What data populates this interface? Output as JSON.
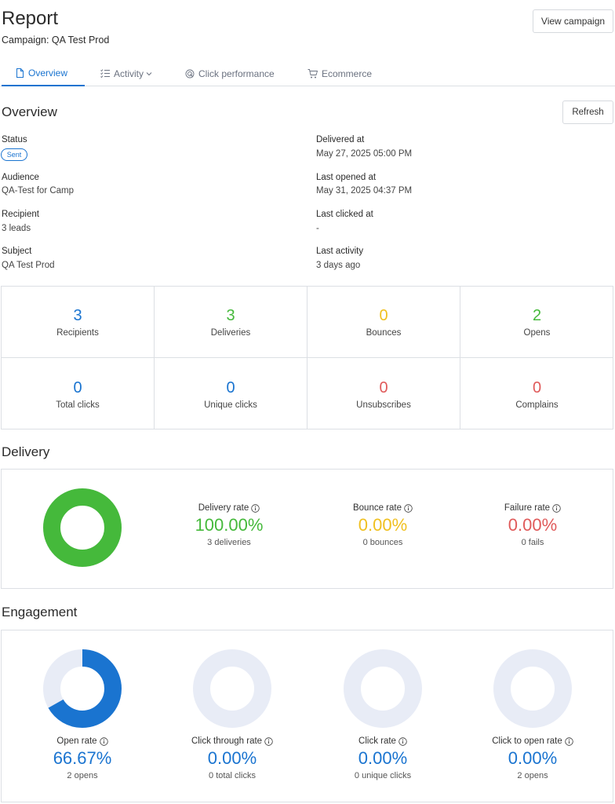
{
  "header": {
    "title": "Report",
    "campaign_line": "Campaign: QA Test Prod",
    "view_campaign_label": "View campaign"
  },
  "tabs": [
    {
      "label": "Overview",
      "icon": "document-icon",
      "active": true
    },
    {
      "label": "Activity",
      "icon": "checklist-icon",
      "active": false
    },
    {
      "label": "Click performance",
      "icon": "click-target-icon",
      "active": false
    },
    {
      "label": "Ecommerce",
      "icon": "cart-icon",
      "active": false
    }
  ],
  "overview": {
    "title": "Overview",
    "refresh_label": "Refresh",
    "status_label": "Status",
    "status_value": "Sent",
    "audience_label": "Audience",
    "audience_value": "QA-Test for Camp",
    "recipient_label": "Recipient",
    "recipient_value": "3 leads",
    "subject_label": "Subject",
    "subject_value": "QA Test Prod",
    "delivered_at_label": "Delivered at",
    "delivered_at_value": "May 27, 2025 05:00 PM",
    "last_opened_label": "Last opened at",
    "last_opened_value": "May 31, 2025 04:37 PM",
    "last_clicked_label": "Last clicked at",
    "last_clicked_value": "-",
    "last_activity_label": "Last activity",
    "last_activity_value": "3 days ago"
  },
  "stats": [
    {
      "value": "3",
      "label": "Recipients",
      "color": "#1a74d0"
    },
    {
      "value": "3",
      "label": "Deliveries",
      "color": "#45b93b"
    },
    {
      "value": "0",
      "label": "Bounces",
      "color": "#f0c020"
    },
    {
      "value": "2",
      "label": "Opens",
      "color": "#45b93b"
    },
    {
      "value": "0",
      "label": "Total clicks",
      "color": "#1a74d0"
    },
    {
      "value": "0",
      "label": "Unique clicks",
      "color": "#1a74d0"
    },
    {
      "value": "0",
      "label": "Unsubscribes",
      "color": "#e05a5a"
    },
    {
      "value": "0",
      "label": "Complains",
      "color": "#e05a5a"
    }
  ],
  "delivery": {
    "title": "Delivery",
    "donut_fraction": 1.0,
    "donut_color": "#45b93b",
    "delivery_rate_label": "Delivery rate",
    "delivery_rate_value": "100.00%",
    "delivery_rate_sub": "3 deliveries",
    "bounce_rate_label": "Bounce rate",
    "bounce_rate_value": "0.00%",
    "bounce_rate_sub": "0 bounces",
    "failure_rate_label": "Failure rate",
    "failure_rate_value": "0.00%",
    "failure_rate_sub": "0 fails"
  },
  "engagement": {
    "title": "Engagement",
    "items": [
      {
        "label": "Open rate",
        "value": "66.67%",
        "sub": "2 opens",
        "fraction": 0.6667
      },
      {
        "label": "Click through rate",
        "value": "0.00%",
        "sub": "0 total clicks",
        "fraction": 0
      },
      {
        "label": "Click rate",
        "value": "0.00%",
        "sub": "0 unique clicks",
        "fraction": 0
      },
      {
        "label": "Click to open rate",
        "value": "0.00%",
        "sub": "2 opens",
        "fraction": 0
      }
    ],
    "fill_color": "#1a74d0",
    "track_color": "#e8ecf6"
  }
}
